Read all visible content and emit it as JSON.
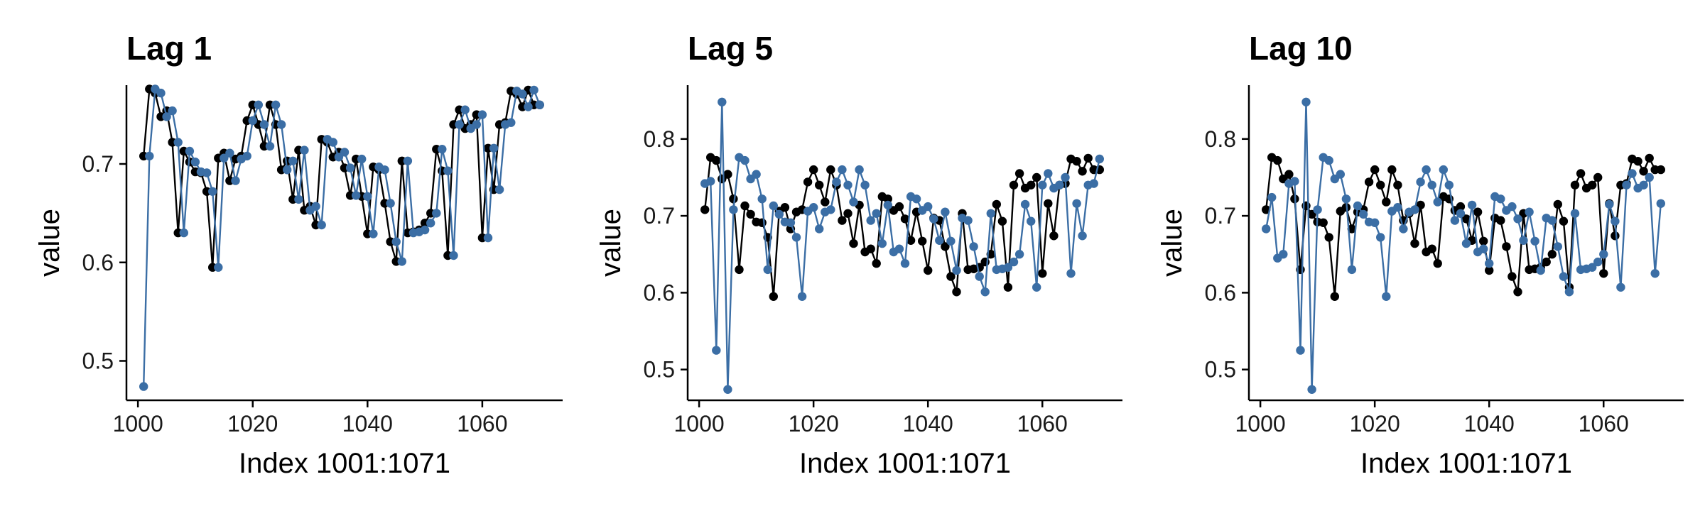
{
  "colors": {
    "original": "#000000",
    "lagged": "#3b6ea5"
  },
  "chart_data": [
    {
      "type": "line",
      "title": "Lag 1",
      "xlabel": "Index 1001:1071",
      "ylabel": "value",
      "x_range": [
        1001,
        1070
      ],
      "xlim": [
        998,
        1074
      ],
      "ylim": [
        0.46,
        0.78
      ],
      "xticks": [
        1000,
        1020,
        1040,
        1060
      ],
      "yticks": [
        0.5,
        0.6,
        0.7
      ],
      "ytick_labels": [
        "0.5",
        "0.6",
        "0.7"
      ],
      "grid": false,
      "series": [
        {
          "values": [
            0.708,
            0.776,
            0.772,
            0.748,
            0.754,
            0.722,
            0.63,
            0.713,
            0.702,
            0.692,
            0.691,
            0.672,
            0.595,
            0.706,
            0.711,
            0.683,
            0.705,
            0.708,
            0.744,
            0.76,
            0.74,
            0.718,
            0.76,
            0.74,
            0.694,
            0.703,
            0.664,
            0.714,
            0.653,
            0.657,
            0.638,
            0.725,
            0.722,
            0.707,
            0.712,
            0.696,
            0.668,
            0.705,
            0.667,
            0.629,
            0.697,
            0.694,
            0.66,
            0.621,
            0.601,
            0.703,
            0.63,
            0.631,
            0.633,
            0.64,
            0.65,
            0.715,
            0.693,
            0.607,
            0.74,
            0.755,
            0.736,
            0.74,
            0.75,
            0.625,
            0.716,
            0.674,
            0.74,
            0.742,
            0.774,
            0.771,
            0.758,
            0.775,
            0.76,
            0.76
          ]
        },
        {
          "values": [
            0.474,
            0.708,
            0.776,
            0.772,
            0.748,
            0.754,
            0.722,
            0.63,
            0.713,
            0.702,
            0.692,
            0.691,
            0.672,
            0.595,
            0.706,
            0.711,
            0.683,
            0.705,
            0.708,
            0.744,
            0.76,
            0.74,
            0.718,
            0.76,
            0.74,
            0.694,
            0.703,
            0.664,
            0.714,
            0.653,
            0.657,
            0.638,
            0.725,
            0.722,
            0.707,
            0.712,
            0.696,
            0.668,
            0.705,
            0.667,
            0.629,
            0.697,
            0.694,
            0.66,
            0.621,
            0.601,
            0.703,
            0.63,
            0.631,
            0.633,
            0.64,
            0.65,
            0.715,
            0.693,
            0.607,
            0.74,
            0.755,
            0.736,
            0.74,
            0.75,
            0.625,
            0.716,
            0.674,
            0.74,
            0.742,
            0.774,
            0.771,
            0.758,
            0.775,
            0.76
          ]
        }
      ]
    },
    {
      "type": "line",
      "title": "Lag 5",
      "xlabel": "Index 1001:1071",
      "ylabel": "value",
      "x_range": [
        1001,
        1070
      ],
      "xlim": [
        998,
        1074
      ],
      "ylim": [
        0.46,
        0.87
      ],
      "xticks": [
        1000,
        1020,
        1040,
        1060
      ],
      "yticks": [
        0.5,
        0.6,
        0.7,
        0.8
      ],
      "ytick_labels": [
        "0.5",
        "0.6",
        "0.7",
        "0.8"
      ],
      "grid": false,
      "series": [
        {
          "values": [
            0.708,
            0.776,
            0.772,
            0.748,
            0.754,
            0.722,
            0.63,
            0.713,
            0.702,
            0.692,
            0.691,
            0.672,
            0.595,
            0.706,
            0.711,
            0.683,
            0.705,
            0.708,
            0.744,
            0.76,
            0.74,
            0.718,
            0.76,
            0.74,
            0.694,
            0.703,
            0.664,
            0.714,
            0.653,
            0.657,
            0.638,
            0.725,
            0.722,
            0.707,
            0.712,
            0.696,
            0.668,
            0.705,
            0.667,
            0.629,
            0.697,
            0.694,
            0.66,
            0.621,
            0.601,
            0.703,
            0.63,
            0.631,
            0.633,
            0.64,
            0.65,
            0.715,
            0.693,
            0.607,
            0.74,
            0.755,
            0.736,
            0.74,
            0.75,
            0.625,
            0.716,
            0.674,
            0.74,
            0.742,
            0.774,
            0.771,
            0.758,
            0.775,
            0.76,
            0.76
          ]
        },
        {
          "values": [
            0.742,
            0.745,
            0.525,
            0.848,
            0.474,
            0.708,
            0.776,
            0.772,
            0.748,
            0.754,
            0.722,
            0.63,
            0.713,
            0.702,
            0.692,
            0.691,
            0.672,
            0.595,
            0.706,
            0.711,
            0.683,
            0.705,
            0.708,
            0.744,
            0.76,
            0.74,
            0.718,
            0.76,
            0.74,
            0.694,
            0.703,
            0.664,
            0.714,
            0.653,
            0.657,
            0.638,
            0.725,
            0.722,
            0.707,
            0.712,
            0.696,
            0.668,
            0.705,
            0.667,
            0.629,
            0.697,
            0.694,
            0.66,
            0.621,
            0.601,
            0.703,
            0.63,
            0.631,
            0.633,
            0.64,
            0.65,
            0.715,
            0.693,
            0.607,
            0.74,
            0.755,
            0.736,
            0.74,
            0.75,
            0.625,
            0.716,
            0.674,
            0.74,
            0.742,
            0.774
          ]
        }
      ]
    },
    {
      "type": "line",
      "title": "Lag 10",
      "xlabel": "Index 1001:1071",
      "ylabel": "value",
      "x_range": [
        1001,
        1070
      ],
      "xlim": [
        998,
        1074
      ],
      "ylim": [
        0.46,
        0.87
      ],
      "xticks": [
        1000,
        1020,
        1040,
        1060
      ],
      "yticks": [
        0.5,
        0.6,
        0.7,
        0.8
      ],
      "ytick_labels": [
        "0.5",
        "0.6",
        "0.7",
        "0.8"
      ],
      "grid": false,
      "series": [
        {
          "values": [
            0.708,
            0.776,
            0.772,
            0.748,
            0.754,
            0.722,
            0.63,
            0.713,
            0.702,
            0.692,
            0.691,
            0.672,
            0.595,
            0.706,
            0.711,
            0.683,
            0.705,
            0.708,
            0.744,
            0.76,
            0.74,
            0.718,
            0.76,
            0.74,
            0.694,
            0.703,
            0.664,
            0.714,
            0.653,
            0.657,
            0.638,
            0.725,
            0.722,
            0.707,
            0.712,
            0.696,
            0.668,
            0.705,
            0.667,
            0.629,
            0.697,
            0.694,
            0.66,
            0.621,
            0.601,
            0.703,
            0.63,
            0.631,
            0.633,
            0.64,
            0.65,
            0.715,
            0.693,
            0.607,
            0.74,
            0.755,
            0.736,
            0.74,
            0.75,
            0.625,
            0.716,
            0.674,
            0.74,
            0.742,
            0.774,
            0.771,
            0.758,
            0.775,
            0.76,
            0.76
          ]
        },
        {
          "values": [
            0.683,
            0.724,
            0.645,
            0.65,
            0.742,
            0.745,
            0.525,
            0.848,
            0.474,
            0.708,
            0.776,
            0.772,
            0.748,
            0.754,
            0.722,
            0.63,
            0.713,
            0.702,
            0.692,
            0.691,
            0.672,
            0.595,
            0.706,
            0.711,
            0.683,
            0.705,
            0.708,
            0.744,
            0.76,
            0.74,
            0.718,
            0.76,
            0.74,
            0.694,
            0.703,
            0.664,
            0.714,
            0.653,
            0.657,
            0.638,
            0.725,
            0.722,
            0.707,
            0.712,
            0.696,
            0.668,
            0.705,
            0.667,
            0.629,
            0.697,
            0.694,
            0.66,
            0.621,
            0.601,
            0.703,
            0.63,
            0.631,
            0.633,
            0.64,
            0.65,
            0.715,
            0.693,
            0.607,
            0.74,
            0.755,
            0.736,
            0.74,
            0.75,
            0.625,
            0.716
          ]
        }
      ]
    }
  ]
}
